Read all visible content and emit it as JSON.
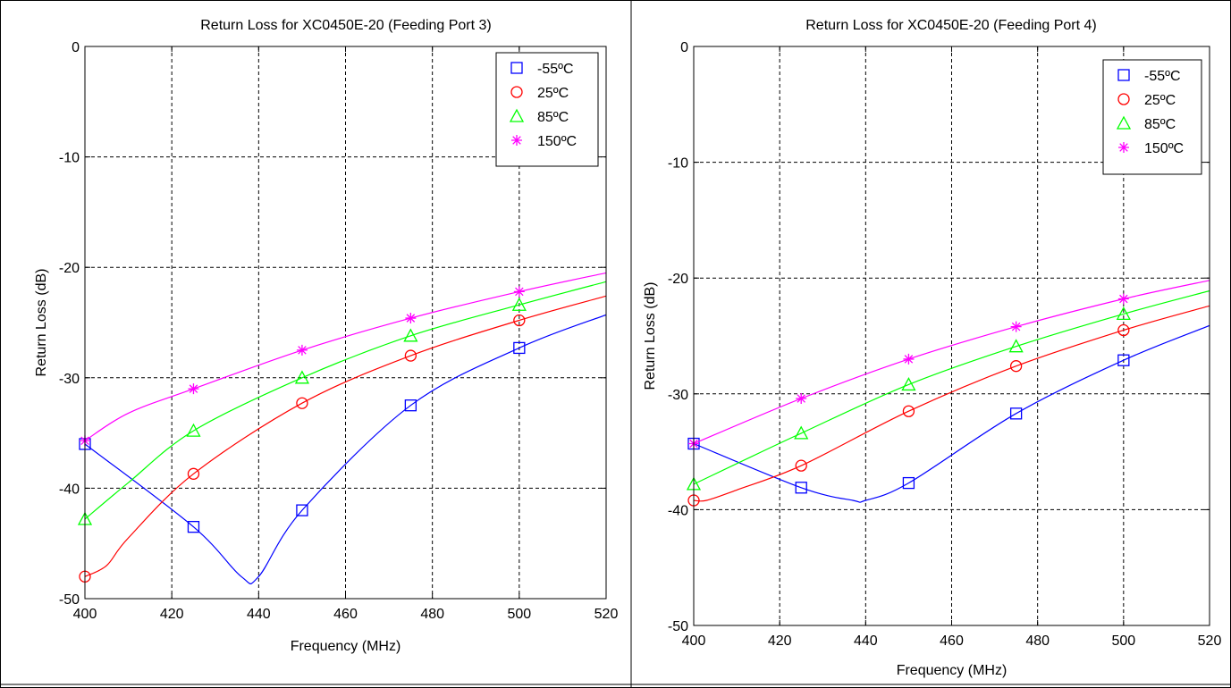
{
  "chart_data": [
    {
      "type": "line",
      "title": "Return Loss for XC0450E-20 (Feeding Port 3)",
      "xlabel": "Frequency (MHz)",
      "ylabel": "Return Loss (dB)",
      "xlim": [
        400,
        520
      ],
      "ylim": [
        -50,
        0
      ],
      "xticks": [
        "400",
        "420",
        "440",
        "460",
        "480",
        "500",
        "520"
      ],
      "yticks": [
        "0",
        "-10",
        "-20",
        "-30",
        "-40",
        "-50"
      ],
      "grid": true,
      "legend_position": "top-right",
      "series": [
        {
          "name": "-55ºC",
          "color": "#0000ff",
          "marker": "square",
          "x": [
            400,
            425,
            436,
            440,
            450,
            475,
            500,
            520
          ],
          "y": [
            -36,
            -43.5,
            -48,
            -48,
            -42,
            -32.5,
            -27.3,
            -24.3
          ],
          "marker_x": [
            400,
            425,
            450,
            475,
            500
          ]
        },
        {
          "name": "25ºC",
          "color": "#ff0000",
          "marker": "circle",
          "x": [
            400,
            405,
            410,
            425,
            450,
            475,
            500,
            520
          ],
          "y": [
            -48,
            -47,
            -44.5,
            -38.7,
            -32.3,
            -28,
            -24.8,
            -22.6
          ],
          "marker_x": [
            400,
            425,
            450,
            475,
            500
          ]
        },
        {
          "name": "85ºC",
          "color": "#00ff00",
          "marker": "triangle",
          "x": [
            400,
            410,
            425,
            450,
            475,
            500,
            520
          ],
          "y": [
            -42.8,
            -39.5,
            -34.8,
            -30,
            -26.2,
            -23.4,
            -21.3
          ],
          "marker_x": [
            400,
            425,
            450,
            475,
            500
          ]
        },
        {
          "name": "150ºC",
          "color": "#ff00ff",
          "marker": "star",
          "x": [
            400,
            410,
            425,
            450,
            475,
            500,
            520
          ],
          "y": [
            -35.7,
            -33.2,
            -31,
            -27.5,
            -24.6,
            -22.2,
            -20.5
          ],
          "marker_x": [
            400,
            425,
            450,
            475,
            500
          ]
        }
      ]
    },
    {
      "type": "line",
      "title": "Return Loss for XC0450E-20 (Feeding Port 4)",
      "xlabel": "Frequency (MHz)",
      "ylabel": "Return Loss (dB)",
      "xlim": [
        400,
        520
      ],
      "ylim": [
        -50,
        0
      ],
      "xticks": [
        "400",
        "420",
        "440",
        "460",
        "480",
        "500",
        "520"
      ],
      "yticks": [
        "0",
        "-10",
        "-20",
        "-30",
        "-40",
        "-50"
      ],
      "grid": true,
      "legend_position": "top-right",
      "series": [
        {
          "name": "-55ºC",
          "color": "#0000ff",
          "marker": "square",
          "x": [
            400,
            425,
            437,
            440,
            450,
            475,
            500,
            520
          ],
          "y": [
            -34.3,
            -38.1,
            -39.2,
            -39.2,
            -37.7,
            -31.7,
            -27.1,
            -24.1
          ],
          "marker_x": [
            400,
            425,
            450,
            475,
            500
          ]
        },
        {
          "name": "25ºC",
          "color": "#ff0000",
          "marker": "circle",
          "x": [
            400,
            403,
            410,
            425,
            450,
            475,
            500,
            520
          ],
          "y": [
            -39.2,
            -39.2,
            -38.3,
            -36.2,
            -31.5,
            -27.6,
            -24.5,
            -22.4
          ],
          "marker_x": [
            400,
            425,
            450,
            475,
            500
          ]
        },
        {
          "name": "85ºC",
          "color": "#00ff00",
          "marker": "triangle",
          "x": [
            400,
            425,
            450,
            475,
            500,
            520
          ],
          "y": [
            -37.8,
            -33.4,
            -29.2,
            -25.9,
            -23.1,
            -21.1
          ],
          "marker_x": [
            400,
            425,
            450,
            475,
            500
          ]
        },
        {
          "name": "150ºC",
          "color": "#ff00ff",
          "marker": "star",
          "x": [
            400,
            425,
            450,
            475,
            500,
            520
          ],
          "y": [
            -34.3,
            -30.4,
            -27,
            -24.2,
            -21.8,
            -20.2
          ],
          "marker_x": [
            400,
            425,
            450,
            475,
            500
          ]
        }
      ]
    }
  ]
}
